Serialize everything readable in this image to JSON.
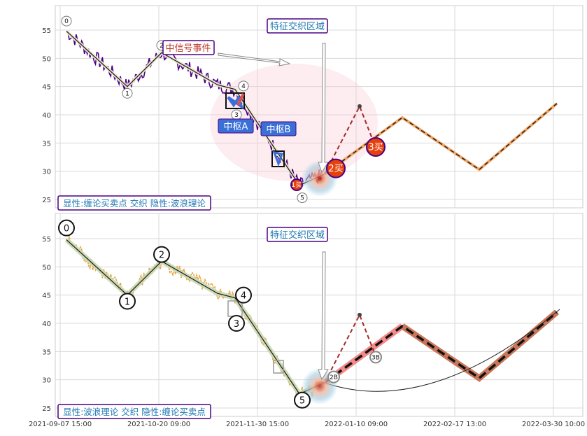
{
  "panels": [
    {
      "yticks": [
        25,
        30,
        35,
        40,
        45,
        50,
        55
      ],
      "region_label": "特征交织区域",
      "legend_label": "显性:缠论买卖点 交织 隐性:波浪理论",
      "signal_event_label": "中信号事件",
      "zhongshu_a_label": "中枢A",
      "zhongshu_b_label": "中枢B",
      "wave_labels": [
        "0",
        "1",
        "2",
        "3",
        "4",
        "5"
      ],
      "buy_labels": [
        "1买",
        "2买",
        "3买"
      ]
    },
    {
      "yticks": [
        25,
        30,
        35,
        40,
        45,
        50,
        55
      ],
      "region_label": "特征交织区域",
      "legend_label": "显性:波浪理论 交织 隐性:缠论买卖点",
      "wave_labels": [
        "0",
        "1",
        "2",
        "3",
        "4",
        "5"
      ],
      "buy_labels": [
        "2B",
        "3B"
      ]
    }
  ],
  "xtick_labels": [
    "2021-09-07 15:00",
    "2021-10-20 09:00",
    "2021-11-30 15:00",
    "2022-01-10 09:00",
    "2022-02-17 13:00",
    "2022-03-30 10:00"
  ],
  "colors": {
    "top_price": "#4b0082",
    "bottom_price": "#e8a33c",
    "label_blue": "#1f77b4",
    "label_red": "#c0392b",
    "buy_circle": "#e8400c",
    "box_border": "#4b0082",
    "dashed_red": "#a52a2a",
    "forecast_tan": "#f4a460",
    "forecast_bottom": "#c8775a",
    "pink_zone": "#f8c8d4",
    "zhongshu_fill": "#3a6fd8"
  },
  "chart_data": [
    {
      "type": "line",
      "ylim": [
        23.5,
        59
      ],
      "xlim": [
        0,
        740
      ],
      "x_ticks": [
        {
          "x": 0,
          "label": "2021-09-07 15:00"
        },
        {
          "x": 141,
          "label": "2021-10-20 09:00"
        },
        {
          "x": 282,
          "label": "2021-11-30 15:00"
        },
        {
          "x": 423,
          "label": "2022-01-10 09:00"
        },
        {
          "x": 564,
          "label": "2022-02-17 13:00"
        },
        {
          "x": 705,
          "label": "2022-03-30 10:00"
        }
      ],
      "series": [
        {
          "kind": "wave_path",
          "points": [
            [
              9,
              54.8
            ],
            [
              96,
              45.0
            ],
            [
              145,
              51.0
            ],
            [
              225,
              45.3
            ],
            [
              250,
              44.5
            ],
            [
              342,
              27.5
            ],
            [
              378,
              29.5
            ]
          ]
        },
        {
          "kind": "forecast_path",
          "points": [
            [
              378,
              29.5
            ],
            [
              489,
              39.5
            ],
            [
              599,
              30.3
            ],
            [
              710,
              42.0
            ]
          ]
        },
        {
          "kind": "dashed_red",
          "points": [
            [
              378,
              29.5
            ],
            [
              428,
              41.5
            ],
            [
              450,
              34.5
            ]
          ]
        }
      ],
      "annotations": {
        "wave_points": [
          {
            "label": "0",
            "x": 9,
            "y": 56.6
          },
          {
            "label": "1",
            "x": 96,
            "y": 43.8
          },
          {
            "label": "2",
            "x": 145,
            "y": 52.3
          },
          {
            "label": "3",
            "x": 252,
            "y": 40.0
          },
          {
            "label": "4",
            "x": 262,
            "y": 45.1
          },
          {
            "label": "5",
            "x": 346,
            "y": 25.3
          }
        ],
        "buy_points": [
          {
            "label": "1买",
            "x": 338,
            "y": 27.6
          },
          {
            "label": "2买",
            "x": 394,
            "y": 30.5
          },
          {
            "label": "3买",
            "x": 451,
            "y": 34.3
          }
        ]
      }
    },
    {
      "type": "line",
      "ylim": [
        23.5,
        59
      ],
      "xlim": [
        0,
        740
      ],
      "series": [
        {
          "kind": "wave_path",
          "points": [
            [
              9,
              54.8
            ],
            [
              96,
              45.0
            ],
            [
              145,
              51.0
            ],
            [
              225,
              45.3
            ],
            [
              250,
              44.5
            ],
            [
              342,
              27.5
            ],
            [
              378,
              29.5
            ]
          ]
        },
        {
          "kind": "forecast_path",
          "points": [
            [
              378,
              29.5
            ],
            [
              489,
              39.5
            ],
            [
              599,
              30.3
            ],
            [
              710,
              42.0
            ]
          ]
        },
        {
          "kind": "dashed_red",
          "points": [
            [
              378,
              29.5
            ],
            [
              428,
              41.5
            ],
            [
              450,
              34.5
            ]
          ]
        }
      ],
      "annotations": {
        "wave_points": [
          {
            "label": "0",
            "x": 9,
            "y": 56.9
          },
          {
            "label": "1",
            "x": 96,
            "y": 43.9
          },
          {
            "label": "2",
            "x": 145,
            "y": 52.2
          },
          {
            "label": "3",
            "x": 252,
            "y": 40.0
          },
          {
            "label": "4",
            "x": 262,
            "y": 45.0
          },
          {
            "label": "5",
            "x": 346,
            "y": 26.4
          }
        ],
        "buy_points": [
          {
            "label": "2B",
            "x": 391,
            "y": 30.5
          },
          {
            "label": "3B",
            "x": 451,
            "y": 34.0
          }
        ]
      }
    }
  ]
}
